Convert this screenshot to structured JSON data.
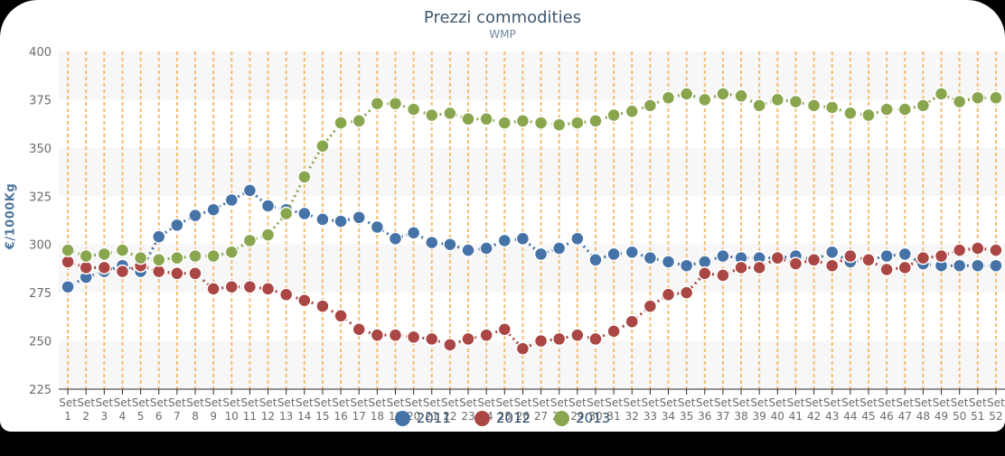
{
  "page": {
    "background_color": "#000000",
    "card_color": "#ffffff"
  },
  "chart_data": {
    "type": "line",
    "title": "Prezzi commodities",
    "subtitle": "WMP",
    "ylabel": "€/1000Kg",
    "ylim": [
      225,
      400
    ],
    "yticks": [
      225,
      250,
      275,
      300,
      325,
      350,
      375,
      400
    ],
    "x_tick_prefix": "Set",
    "categories": [
      "1",
      "2",
      "3",
      "4",
      "5",
      "6",
      "7",
      "8",
      "9",
      "10",
      "11",
      "12",
      "13",
      "14",
      "15",
      "16",
      "17",
      "18",
      "19",
      "20",
      "21",
      "22",
      "23",
      "24",
      "25",
      "26",
      "27",
      "28",
      "29",
      "30",
      "31",
      "32",
      "33",
      "34",
      "35",
      "36",
      "37",
      "38",
      "39",
      "40",
      "41",
      "42",
      "43",
      "44",
      "45",
      "46",
      "47",
      "48",
      "49",
      "50",
      "51",
      "52"
    ],
    "grid": {
      "vertical_dashed": true,
      "gridline_color": "#F6BC72",
      "band_color": "#F7F7F7",
      "alternating_bands": true,
      "horizontal_gridlines": false
    },
    "legend_position": "bottom",
    "axis_text_color": "#6B6B6B",
    "axis_line_color": "#2B2B2B",
    "legend_text_color": "#274B6D",
    "series": [
      {
        "name": "2011",
        "color": "#4572A7",
        "values": [
          278,
          283,
          286,
          289,
          286,
          304,
          310,
          315,
          318,
          323,
          328,
          320,
          318,
          316,
          313,
          312,
          314,
          309,
          303,
          306,
          301,
          300,
          297,
          298,
          302,
          303,
          295,
          298,
          303,
          292,
          295,
          296,
          293,
          291,
          289,
          291,
          294,
          293,
          293,
          293,
          294,
          292,
          296,
          291,
          292,
          294,
          295,
          290,
          289,
          289,
          289,
          289
        ]
      },
      {
        "name": "2012",
        "color": "#AA4643",
        "values": [
          291,
          288,
          288,
          286,
          289,
          286,
          285,
          285,
          277,
          278,
          278,
          277,
          274,
          271,
          268,
          263,
          256,
          253,
          253,
          252,
          251,
          248,
          251,
          253,
          256,
          246,
          250,
          251,
          253,
          251,
          255,
          260,
          268,
          274,
          275,
          285,
          284,
          288,
          288,
          293,
          290,
          292,
          289,
          294,
          292,
          287,
          288,
          293,
          294,
          297,
          298,
          297
        ]
      },
      {
        "name": "2013",
        "color": "#89A54E",
        "values": [
          297,
          294,
          295,
          297,
          293,
          292,
          293,
          294,
          294,
          296,
          302,
          305,
          316,
          335,
          351,
          363,
          364,
          373,
          373,
          370,
          367,
          368,
          365,
          365,
          363,
          364,
          363,
          362,
          363,
          364,
          367,
          369,
          372,
          376,
          378,
          375,
          378,
          377,
          372,
          375,
          374,
          372,
          371,
          368,
          367,
          370,
          370,
          372,
          378,
          374,
          376,
          376
        ]
      }
    ]
  }
}
